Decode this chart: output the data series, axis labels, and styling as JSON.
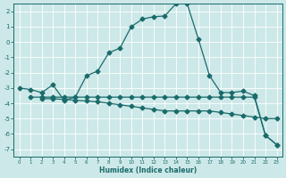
{
  "xlabel": "Humidex (Indice chaleur)",
  "xlim": [
    -0.5,
    23.5
  ],
  "ylim": [
    -7.5,
    2.5
  ],
  "yticks": [
    2,
    1,
    0,
    -1,
    -2,
    -3,
    -4,
    -5,
    -6,
    -7
  ],
  "xticks": [
    0,
    1,
    2,
    3,
    4,
    5,
    6,
    7,
    8,
    9,
    10,
    11,
    12,
    13,
    14,
    15,
    16,
    17,
    18,
    19,
    20,
    21,
    22,
    23
  ],
  "bg_color": "#cde8e8",
  "line_color": "#1a6b6b",
  "grid_color": "#b0d0d0",
  "line1_x": [
    0,
    1,
    2,
    3,
    4,
    5,
    6,
    7,
    8,
    9,
    10,
    11,
    12,
    13,
    14,
    15,
    16,
    17,
    18,
    19,
    20,
    21,
    22,
    23
  ],
  "line1_y": [
    -3.0,
    -3.1,
    -3.3,
    -2.8,
    -3.8,
    -3.6,
    -2.2,
    -1.9,
    -0.7,
    -0.4,
    1.0,
    1.5,
    1.65,
    1.7,
    2.5,
    2.5,
    0.2,
    -2.2,
    -3.3,
    -3.3,
    -3.2,
    -3.5,
    -6.1,
    -6.7
  ],
  "line2_x": [
    1,
    2,
    3,
    4,
    5,
    6,
    7,
    8,
    9,
    10,
    11,
    12,
    13,
    14,
    15,
    16,
    17,
    18,
    19,
    20,
    21,
    22,
    23
  ],
  "line2_y": [
    -3.6,
    -3.6,
    -3.6,
    -3.6,
    -3.6,
    -3.6,
    -3.6,
    -3.6,
    -3.6,
    -3.6,
    -3.6,
    -3.6,
    -3.6,
    -3.6,
    -3.6,
    -3.6,
    -3.6,
    -3.6,
    -3.6,
    -3.6,
    -3.6,
    -6.1,
    -6.7
  ],
  "line3_x": [
    2,
    3,
    4,
    5,
    6,
    7,
    8,
    9,
    10,
    11,
    12,
    13,
    14,
    15,
    16,
    17,
    18,
    19,
    20,
    21,
    22,
    23
  ],
  "line3_y": [
    -3.7,
    -3.7,
    -3.75,
    -3.8,
    -3.85,
    -3.9,
    -4.0,
    -4.1,
    -4.2,
    -4.3,
    -4.4,
    -4.5,
    -4.5,
    -4.5,
    -4.5,
    -4.5,
    -4.6,
    -4.7,
    -4.8,
    -4.9,
    -5.0,
    -5.0
  ]
}
